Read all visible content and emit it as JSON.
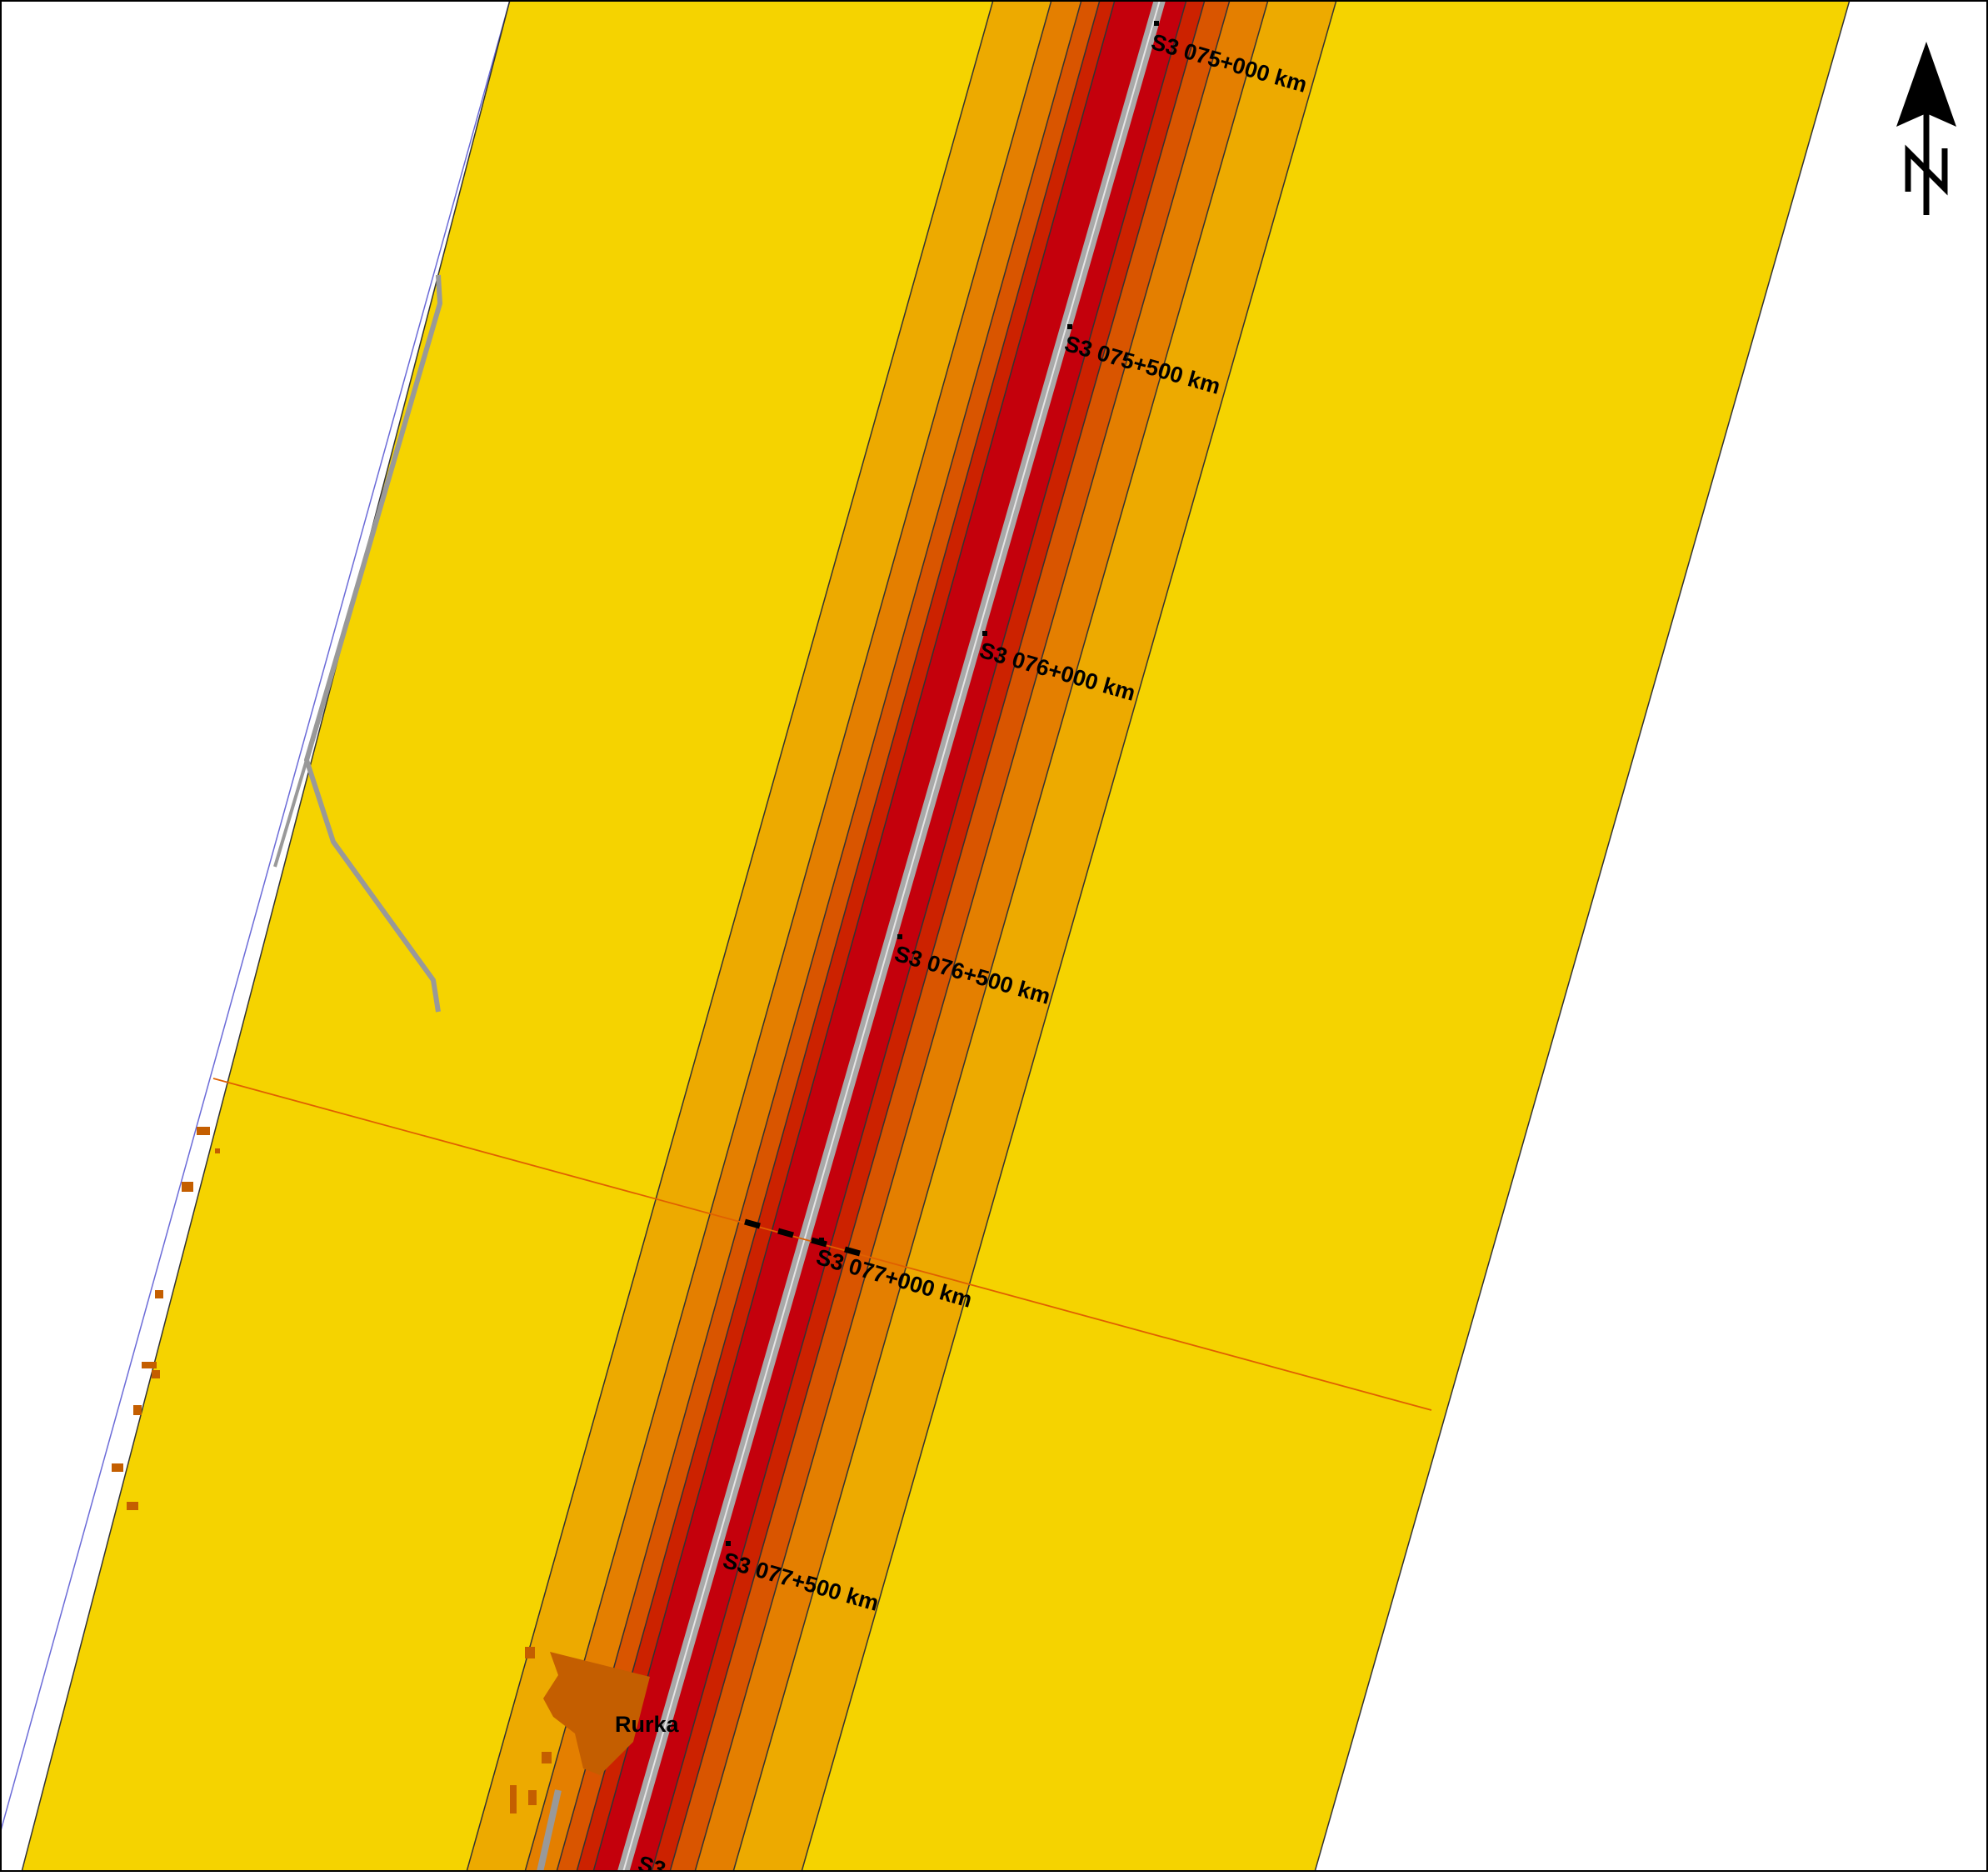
{
  "map": {
    "road": "S3",
    "chainage_labels": [
      "S3 075+000 km",
      "S3 075+500 km",
      "S3 076+000 km",
      "S3 076+500 km",
      "S3 077+000 km",
      "S3 077+500 km",
      "S3"
    ],
    "place_name": "Rurka",
    "north_arrow_letter": "N"
  },
  "legend_colors": {
    "zone_1_outer": "#f5d300",
    "zone_2": "#edaa00",
    "zone_3": "#e47f00",
    "zone_4": "#d95500",
    "zone_5": "#cc2200",
    "zone_6_inner": "#c4000c",
    "road_surface": "#a9a9a9",
    "buildings": "#c45e00",
    "minor_road": "#999999",
    "boundary_line": "#6b6bd8",
    "section_line": "#e06000"
  },
  "icons": [
    "north-arrow-icon"
  ]
}
